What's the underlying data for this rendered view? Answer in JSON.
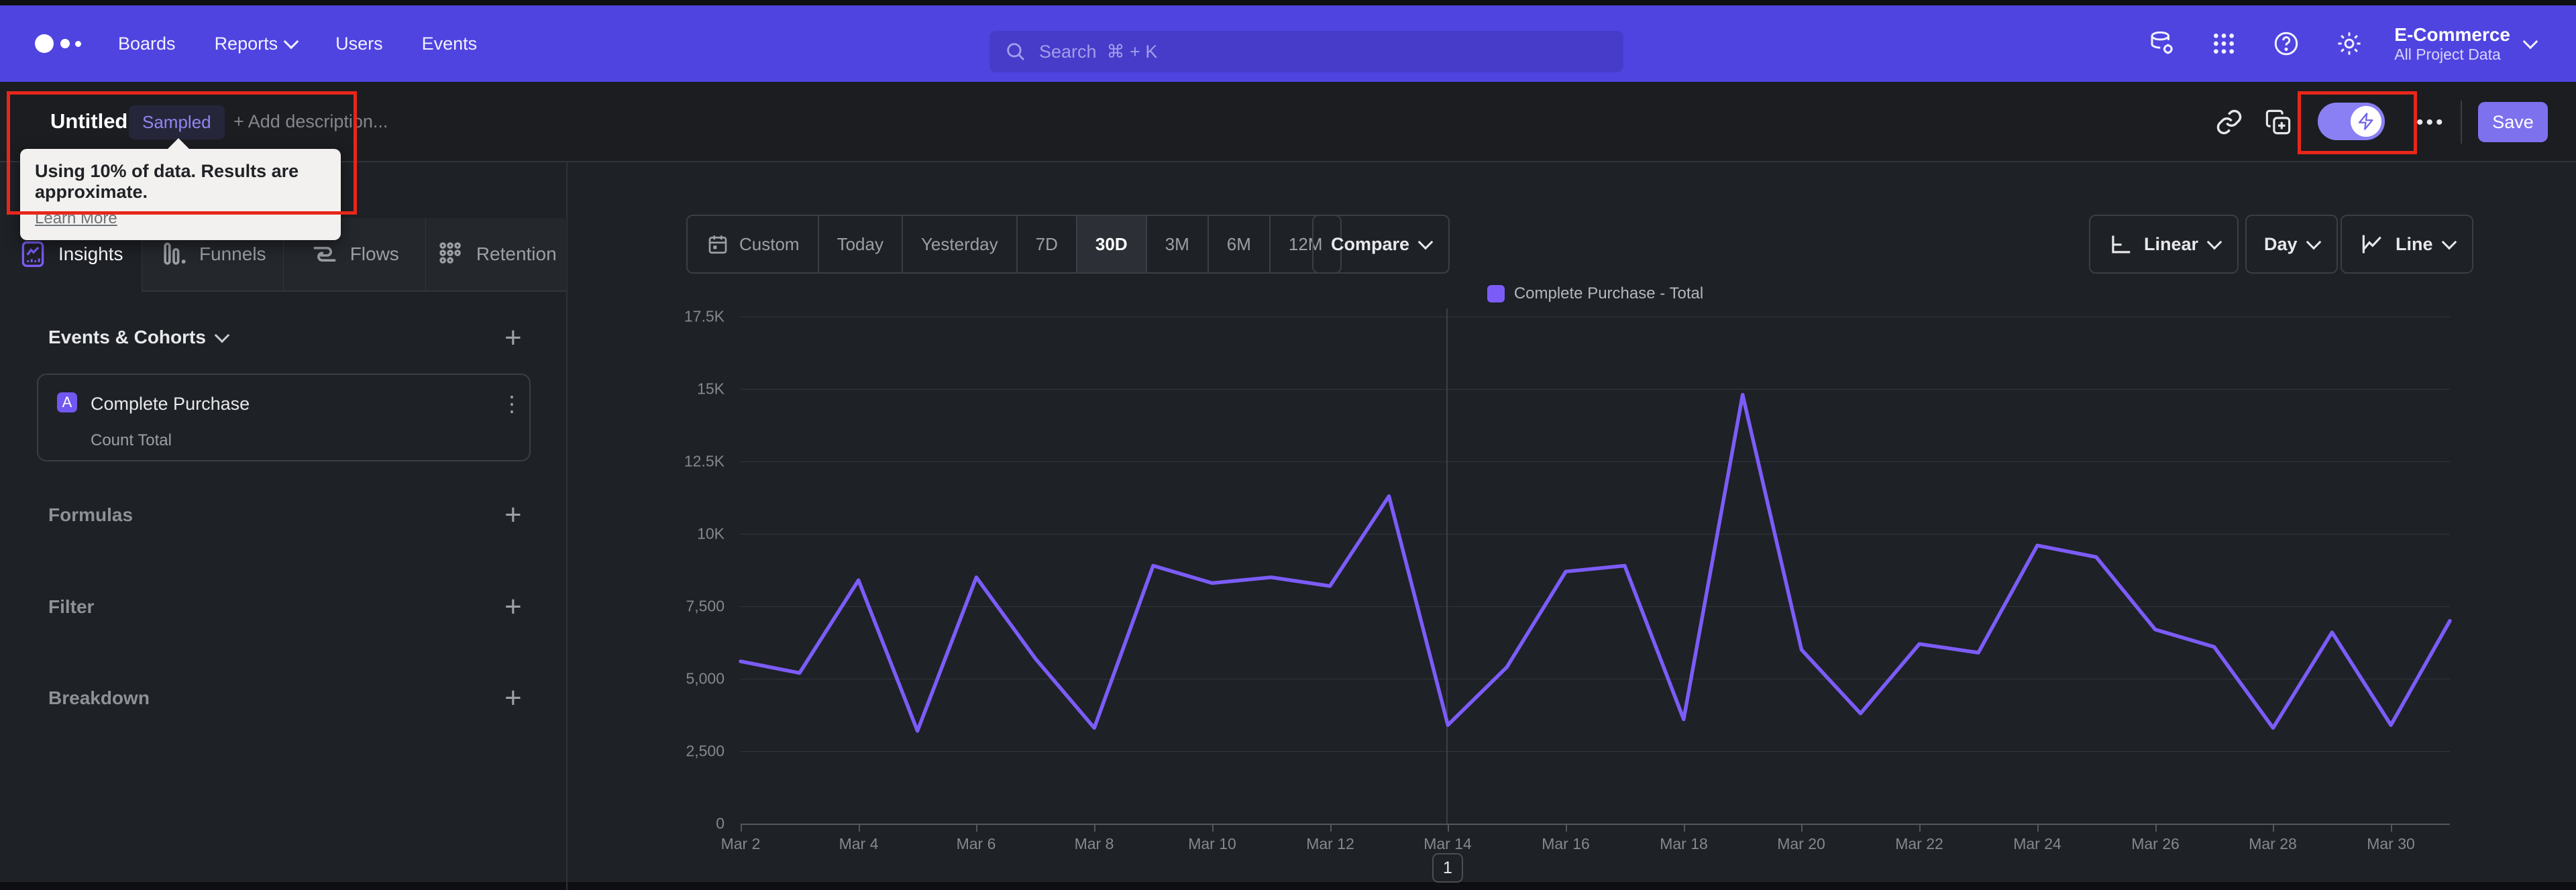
{
  "topbar": {
    "nav_items": [
      "Boards",
      "Reports",
      "Users",
      "Events"
    ],
    "search_placeholder": "Search  ⌘ + K",
    "project_name": "E-Commerce",
    "project_scope": "All Project Data"
  },
  "title_bar": {
    "title": "Untitled",
    "sampling_badge": "Sampled",
    "description_placeholder": "+ Add description...",
    "ellipsis": "•••",
    "save_label": "Save"
  },
  "sampling_tooltip": {
    "message": "Using 10% of data. Results are approximate.",
    "link_label": "Learn More"
  },
  "sidebar": {
    "tabs": [
      {
        "label": "Insights",
        "active": true
      },
      {
        "label": "Funnels",
        "active": false
      },
      {
        "label": "Flows",
        "active": false
      },
      {
        "label": "Retention",
        "active": false
      }
    ],
    "events_section": {
      "header": "Events & Cohorts",
      "add_button": "+",
      "card": {
        "series_letter": "A",
        "event_name": "Complete Purchase",
        "aggregation": "Count Total",
        "menu": "⋮"
      }
    },
    "sections": [
      {
        "label": "Formulas",
        "add_button": "+"
      },
      {
        "label": "Filter",
        "add_button": "+"
      },
      {
        "label": "Breakdown",
        "add_button": "+"
      }
    ]
  },
  "chart_toolbar": {
    "date_ranges": [
      "Custom",
      "Today",
      "Yesterday",
      "7D",
      "30D",
      "3M",
      "6M",
      "12M"
    ],
    "active_range": "30D",
    "compare_label": "Compare",
    "y_scale": "Linear",
    "interval": "Day",
    "chart_type": "Line"
  },
  "chart_data": {
    "type": "line",
    "legend": [
      {
        "name": "Complete Purchase - Total",
        "color": "#7c5cf8"
      }
    ],
    "x": [
      "Mar 2",
      "Mar 3",
      "Mar 4",
      "Mar 5",
      "Mar 6",
      "Mar 7",
      "Mar 8",
      "Mar 9",
      "Mar 10",
      "Mar 11",
      "Mar 12",
      "Mar 13",
      "Mar 14",
      "Mar 15",
      "Mar 16",
      "Mar 17",
      "Mar 18",
      "Mar 19",
      "Mar 20",
      "Mar 21",
      "Mar 22",
      "Mar 23",
      "Mar 24",
      "Mar 25",
      "Mar 26",
      "Mar 27",
      "Mar 28",
      "Mar 29",
      "Mar 30",
      "Mar 31"
    ],
    "series": [
      {
        "name": "Complete Purchase - Total",
        "values": [
          5600,
          5200,
          8400,
          3200,
          8500,
          5700,
          3300,
          8900,
          8300,
          8500,
          8200,
          11300,
          3400,
          5400,
          8700,
          8900,
          3600,
          14800,
          6000,
          3800,
          6200,
          5900,
          9600,
          9200,
          6700,
          6100,
          3300,
          6600,
          3400,
          7000
        ]
      }
    ],
    "ylim": [
      0,
      17500
    ],
    "y_tick_labels": [
      "17.5K",
      "15K",
      "12.5K",
      "10K",
      "7,500",
      "5,000",
      "2,500",
      "0"
    ],
    "x_tick_labels": [
      "Mar 2",
      "Mar 4",
      "Mar 6",
      "Mar 8",
      "Mar 10",
      "Mar 12",
      "Mar 14",
      "Mar 16",
      "Mar 18",
      "Mar 20",
      "Mar 22",
      "Mar 24",
      "Mar 26",
      "Mar 28",
      "Mar 30"
    ],
    "grid": "horizontal",
    "legend_position": "top-center"
  },
  "pagination": {
    "page": "1"
  },
  "colors": {
    "topbar_bg": "#4f44e0",
    "page_bg": "#1e2126",
    "line": "#7c5cf8",
    "annotation_red": "#e8271a",
    "save_bg": "#7e71ee",
    "toggle_bg": "#8a80f3",
    "badge_text": "#9186f2"
  },
  "icons": {
    "logo": "mixpanel-dots",
    "search-icon": "magnifier",
    "data-management-icon": "database-gear",
    "apps-grid-icon": "3x3-dots",
    "help-icon": "question-circle",
    "settings-icon": "gear",
    "link-icon": "chain",
    "copy-add-icon": "duplicate-plus",
    "sampling-toggle-icon": "lightning-bolt",
    "calendar-icon": "calendar",
    "linear-scale-icon": "axis",
    "line-chart-icon": "trend-line",
    "insights-icon": "chart-card",
    "funnels-icon": "bars",
    "flows-icon": "streams",
    "retention-icon": "dot-grid",
    "kebab-icon": "vertical-dots"
  }
}
